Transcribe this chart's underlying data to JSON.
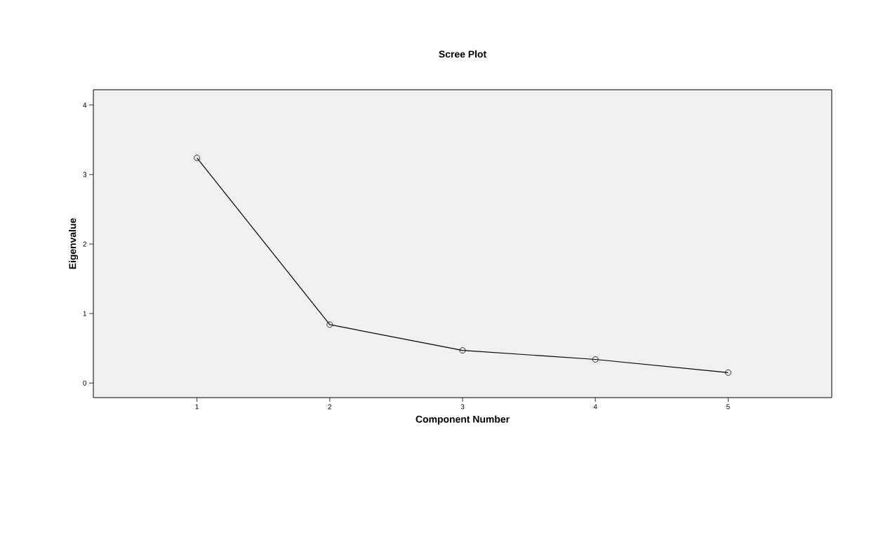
{
  "chart_data": {
    "type": "line",
    "title": "Scree Plot",
    "xlabel": "Component Number",
    "ylabel": "Eigenvalue",
    "x": [
      1,
      2,
      3,
      4,
      5
    ],
    "series": [
      {
        "color": "#000000",
        "values": [
          3.24,
          0.84,
          0.47,
          0.34,
          0.15
        ]
      }
    ],
    "xlim": [
      0.22,
      5.78
    ],
    "xticks": [
      1,
      2,
      3,
      4,
      5
    ],
    "ylim": [
      -0.21,
      4.22
    ],
    "yticks": [
      0,
      1,
      2,
      3,
      4
    ],
    "marker": "circle",
    "line_style": "solid"
  }
}
